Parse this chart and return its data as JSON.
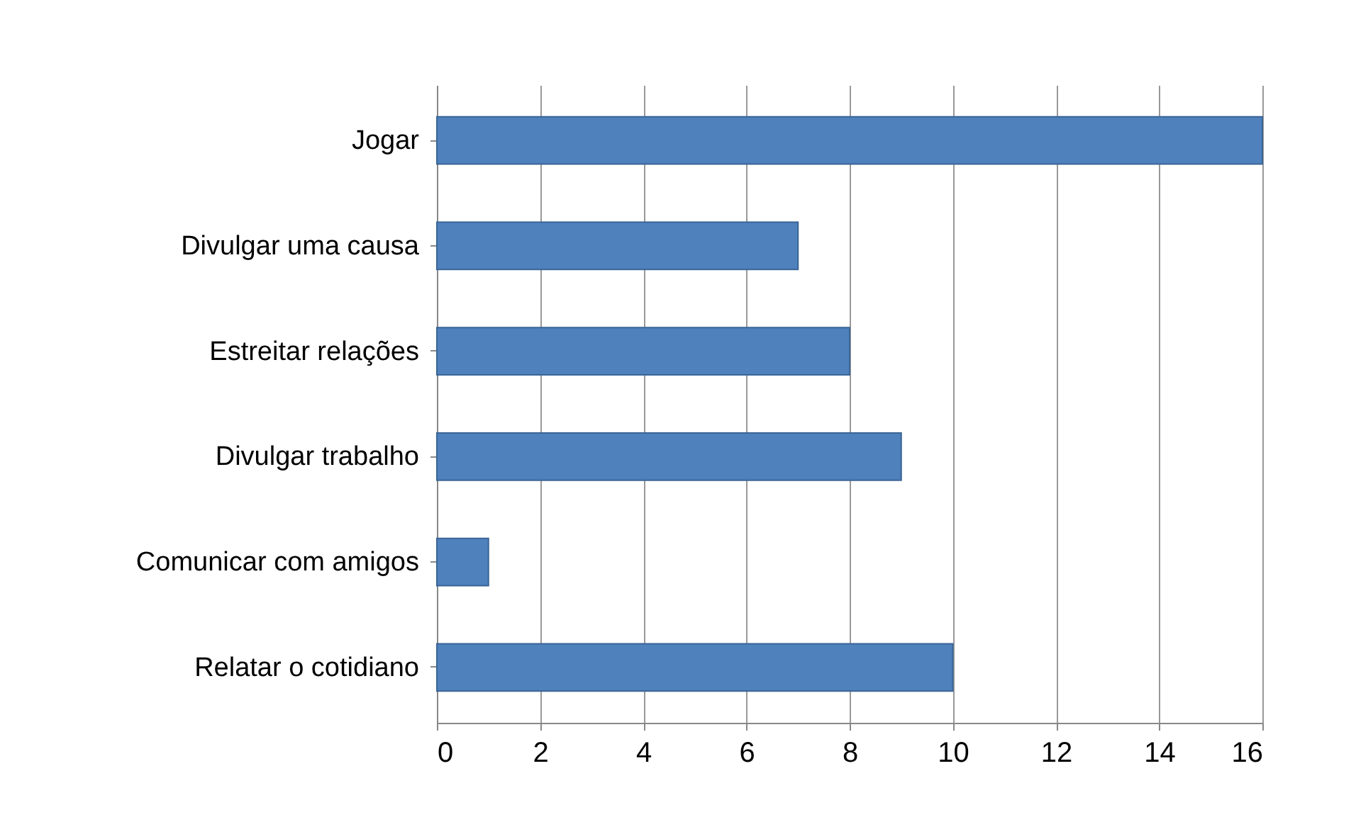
{
  "chart_data": {
    "type": "bar",
    "orientation": "horizontal",
    "categories": [
      "Jogar",
      "Divulgar uma causa",
      "Estreitar relações",
      "Divulgar trabalho",
      "Comunicar com amigos",
      "Relatar o cotidiano"
    ],
    "values": [
      16,
      7,
      8,
      9,
      1,
      10
    ],
    "color": "#4f81bd",
    "xlim": [
      0,
      16
    ],
    "xticks": [
      0,
      2,
      4,
      6,
      8,
      10,
      12,
      14,
      16
    ],
    "grid": "x"
  }
}
